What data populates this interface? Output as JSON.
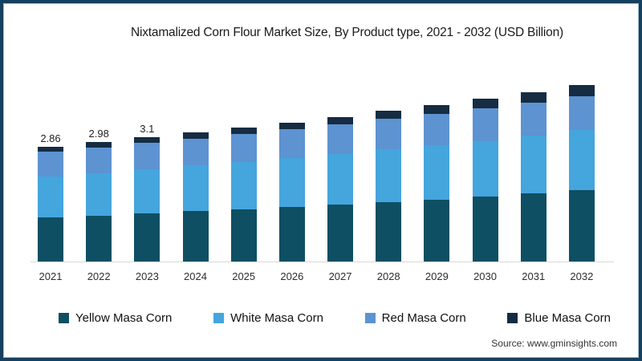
{
  "page": {
    "source": "Source: www.gminsights.com"
  },
  "colors": {
    "frame_border": "#16405f",
    "frame_inner_line": "#a4bfd1",
    "axis_line": "#d9d9d9"
  },
  "chart_data": {
    "type": "bar",
    "stacked": true,
    "title": "Nixtamalized Corn Flour Market Size, By Product type, 2021 - 2032 (USD Billion)",
    "unit": "USD Billion",
    "xlabel": "",
    "ylabel": "",
    "ylim": [
      0,
      4.5
    ],
    "grid": false,
    "legend_position": "bottom",
    "categories": [
      "2021",
      "2022",
      "2023",
      "2024",
      "2025",
      "2026",
      "2027",
      "2028",
      "2029",
      "2030",
      "2031",
      "2032"
    ],
    "series": [
      {
        "name": "Yellow Masa Corn",
        "color": "#0e4f63",
        "values": [
          1.1,
          1.15,
          1.2,
          1.26,
          1.31,
          1.37,
          1.43,
          1.49,
          1.55,
          1.62,
          1.7,
          1.79
        ]
      },
      {
        "name": "White Masa Corn",
        "color": "#45a5dd",
        "values": [
          1.02,
          1.06,
          1.1,
          1.14,
          1.18,
          1.22,
          1.26,
          1.31,
          1.35,
          1.39,
          1.44,
          1.5
        ]
      },
      {
        "name": "Red Masa Corn",
        "color": "#5d93d1",
        "values": [
          0.62,
          0.64,
          0.66,
          0.67,
          0.69,
          0.71,
          0.74,
          0.76,
          0.79,
          0.81,
          0.83,
          0.84
        ]
      },
      {
        "name": "Blue Masa Corn",
        "color": "#152c42",
        "values": [
          0.12,
          0.13,
          0.14,
          0.15,
          0.16,
          0.17,
          0.18,
          0.2,
          0.22,
          0.24,
          0.26,
          0.27
        ]
      }
    ],
    "totals": [
      2.86,
      2.98,
      3.1,
      3.22,
      3.34,
      3.47,
      3.61,
      3.76,
      3.91,
      4.06,
      4.23,
      4.4
    ],
    "total_labels": [
      "2.86",
      "2.98",
      "3.1",
      null,
      null,
      null,
      null,
      null,
      null,
      null,
      null,
      null
    ]
  }
}
